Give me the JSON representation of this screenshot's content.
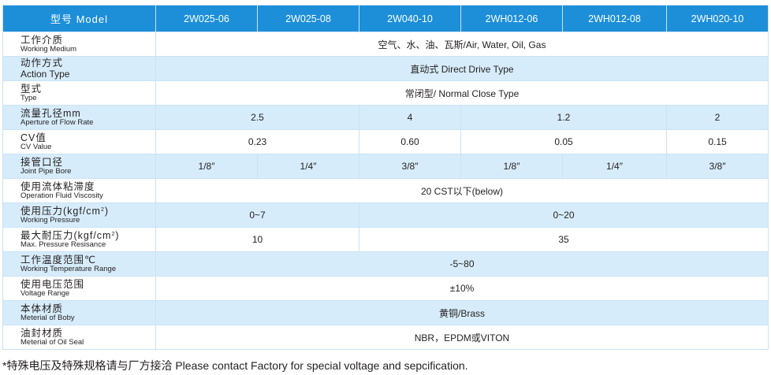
{
  "header": {
    "model_label": "型号 Model",
    "models": [
      "2W025-06",
      "2W025-08",
      "2W040-10",
      "2WH012-06",
      "2WH012-08",
      "2WH020-10"
    ]
  },
  "rows": {
    "medium": {
      "cn": "工作介质",
      "en": "Working Medium",
      "value": "空气、水、油、瓦斯/Air, Water, Oil, Gas"
    },
    "action": {
      "cn": "动作方式",
      "en": "Action Type",
      "value": "直动式 Direct Drive Type"
    },
    "type": {
      "cn": "型式",
      "en": "Type",
      "value": "常闭型/ Normal Close Type"
    },
    "aperture": {
      "cn": "流量孔径mm",
      "en": "Aperture of Flow Rate",
      "v1": "2.5",
      "v2": "4",
      "v3": "1.2",
      "v4": "2"
    },
    "cv": {
      "cn": "CV值",
      "en": "CV Value",
      "v1": "0.23",
      "v2": "0.60",
      "v3": "0.05",
      "v4": "0.15"
    },
    "bore": {
      "cn": "接管口径",
      "en": "Joint Pipe Bore",
      "values": [
        "1/8″",
        "1/4″",
        "3/8″",
        "1/8″",
        "1/4″",
        "3/8″"
      ]
    },
    "viscosity": {
      "cn": "使用流体粘滞度",
      "en": "Operation Fluid Viscosity",
      "value": "20  CST以下(below)"
    },
    "pressure": {
      "cn_pre": "使用压力(kgf/cm",
      "sup": "2",
      "cn_post": ")",
      "en": "Working Pressure",
      "v1": "0~7",
      "v2": "0~20"
    },
    "max_pressure": {
      "cn_pre": "最大耐压力(kgf/cm",
      "sup": "2",
      "cn_post": ")",
      "en": "Max. Pressure Resisance",
      "v1": "10",
      "v2": "35"
    },
    "temperature": {
      "cn": "工作温度范围℃",
      "en": "Working Temperature Range",
      "value": "-5~80"
    },
    "voltage": {
      "cn": "使用电压范围",
      "en": "Voltage Range",
      "value": "±10%"
    },
    "body": {
      "cn": "本体材质",
      "en": "Meterial of Boby",
      "value": "黄铜/Brass"
    },
    "seal": {
      "cn": "油封材质",
      "en": "Meterial of Oil Seal",
      "value": "NBR，EPDM或VITON"
    }
  },
  "note": "*特殊电压及特殊规格请与厂方接洽 Please contact Factory for special voltage and sepcification."
}
